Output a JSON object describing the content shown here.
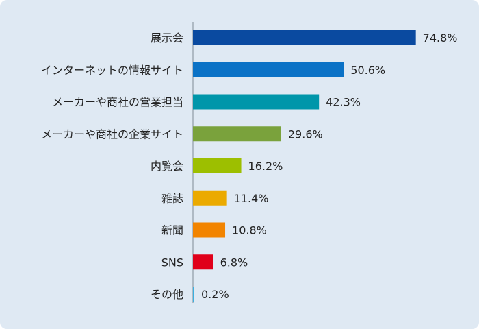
{
  "chart_data": {
    "type": "bar",
    "orientation": "horizontal",
    "categories": [
      "展示会",
      "インターネットの情報サイト",
      "メーカーや商社の営業担当",
      "メーカーや商社の企業サイト",
      "内覧会",
      "雑誌",
      "新聞",
      "SNS",
      "その他"
    ],
    "values": [
      74.8,
      50.6,
      42.3,
      29.6,
      16.2,
      11.4,
      10.8,
      6.8,
      0.2
    ],
    "value_labels": [
      "74.8%",
      "50.6%",
      "42.3%",
      "29.6%",
      "16.2%",
      "11.4%",
      "10.8%",
      "6.8%",
      "0.2%"
    ],
    "colors": [
      "#0a4aa0",
      "#0b72c6",
      "#0096aa",
      "#7aa23c",
      "#9dbf00",
      "#ebaa00",
      "#f28400",
      "#e0001a",
      "#3bb0e0"
    ],
    "xlim": [
      0,
      80
    ],
    "grid": false,
    "legend": false
  }
}
